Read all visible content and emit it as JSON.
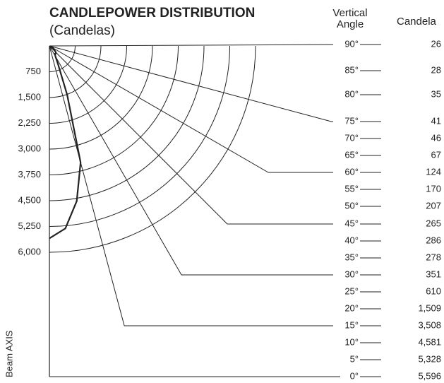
{
  "chart_data": {
    "type": "candlepower",
    "title": "CANDLEPOWER DISTRIBUTION",
    "subtitle": "(Candelas)",
    "angle_header": "Vertical Angle",
    "value_header": "Candela",
    "axis_label": "Beam AXIS",
    "rticks": [
      750,
      {
        "value": 1500,
        "label": "1,500"
      },
      {
        "value": 2250,
        "label": "2,250"
      },
      {
        "value": 3000,
        "label": "3,000"
      },
      {
        "value": 3750,
        "label": "3,750"
      },
      {
        "value": 4500,
        "label": "4,500"
      },
      {
        "value": 5250,
        "label": "5,250"
      },
      {
        "value": 6000,
        "label": "6,000"
      }
    ],
    "angles": [
      {
        "value": 90,
        "label": "90°"
      },
      {
        "value": 85,
        "label": "85°"
      },
      {
        "value": 80,
        "label": "80°"
      },
      {
        "value": 75,
        "label": "75°"
      },
      {
        "value": 70,
        "label": "70°"
      },
      {
        "value": 65,
        "label": "65°"
      },
      {
        "value": 60,
        "label": "60°"
      },
      {
        "value": 55,
        "label": "55°"
      },
      {
        "value": 50,
        "label": "50°"
      },
      {
        "value": 45,
        "label": "45°"
      },
      {
        "value": 40,
        "label": "40°"
      },
      {
        "value": 35,
        "label": "35°"
      },
      {
        "value": 30,
        "label": "30°"
      },
      {
        "value": 25,
        "label": "25°"
      },
      {
        "value": 20,
        "label": "20°"
      },
      {
        "value": 15,
        "label": "15°"
      },
      {
        "value": 10,
        "label": "10°"
      },
      {
        "value": 5,
        "label": "5°"
      },
      {
        "value": 0,
        "label": "0°"
      }
    ],
    "values": [
      26,
      28,
      35,
      41,
      46,
      67,
      124,
      170,
      207,
      265,
      286,
      278,
      351,
      610,
      1509,
      3508,
      4581,
      5328,
      5596
    ],
    "value_labels": [
      "26",
      "28",
      "35",
      "41",
      "46",
      "67",
      "124",
      "170",
      "207",
      "265",
      "286",
      "278",
      "351",
      "610",
      "1,509",
      "3,508",
      "4,581",
      "5,328",
      "5,596"
    ],
    "color": "#222222"
  }
}
